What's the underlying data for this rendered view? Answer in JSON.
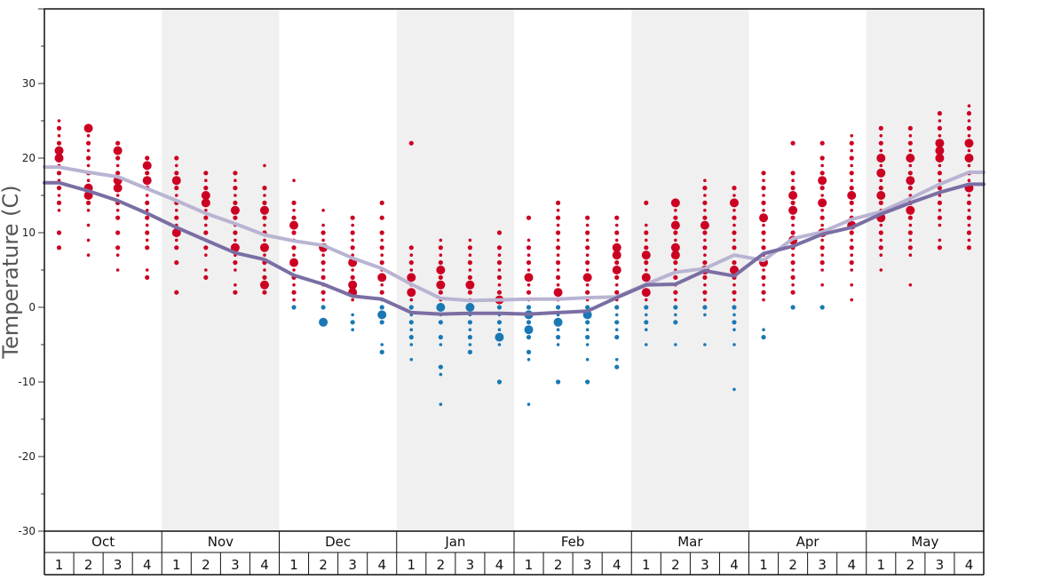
{
  "chart_data": {
    "type": "scatter",
    "ylabel": "Temperature (C)",
    "ylim": [
      -30,
      40
    ],
    "yticks": [
      30,
      20,
      10,
      0,
      -10,
      -20,
      -30
    ],
    "ytick_labels": [
      "30",
      "20",
      "10",
      "0",
      "-10",
      "-20",
      "-30"
    ],
    "months": [
      "Oct",
      "Nov",
      "Dec",
      "Jan",
      "Feb",
      "Mar",
      "Apr",
      "May"
    ],
    "weeks": [
      "1",
      "2",
      "3",
      "4"
    ],
    "shaded_months": [
      "Nov",
      "Jan",
      "Mar",
      "May"
    ],
    "colors": {
      "above_freezing": "#cc0022",
      "below_freezing": "#1a78b4",
      "avg_high_line": "#b9b4d2",
      "avg_low_line": "#7a6ea3",
      "shade": "#f0f0f0"
    },
    "series": [
      {
        "kind": "line",
        "values": [
          18.8,
          18.1,
          17.5,
          15.9,
          14.3,
          12.6,
          11.2,
          9.7,
          8.9,
          8.3,
          6.6,
          5.2,
          3.1,
          1.2,
          0.9,
          1.0,
          1.1,
          1.1,
          1.3,
          1.4,
          3.1,
          4.7,
          5.2,
          7.0,
          6.3,
          9.2,
          10.1,
          11.8,
          12.8,
          14.6,
          16.5,
          18.1
        ]
      },
      {
        "kind": "line",
        "values": [
          16.7,
          15.6,
          14.3,
          12.6,
          10.7,
          9.0,
          7.3,
          6.4,
          4.3,
          3.1,
          1.5,
          1.1,
          -0.7,
          -0.9,
          -0.8,
          -0.8,
          -0.9,
          -0.7,
          -0.5,
          1.3,
          3.0,
          3.1,
          4.9,
          4.2,
          7.2,
          8.2,
          9.8,
          10.7,
          12.5,
          14.0,
          15.4,
          16.5
        ]
      }
    ],
    "observations": [
      {
        "week": 1,
        "temps": [
          25,
          24,
          23,
          22,
          21,
          20,
          19,
          18,
          17,
          16,
          15,
          14,
          13,
          10,
          8
        ],
        "large": [
          21,
          20
        ]
      },
      {
        "week": 2,
        "temps": [
          24,
          23,
          22,
          21,
          20,
          19,
          18,
          17,
          16,
          15,
          14,
          13,
          11,
          9,
          7
        ],
        "large": [
          24,
          16,
          15
        ]
      },
      {
        "week": 3,
        "temps": [
          22,
          21,
          20,
          19,
          18,
          17,
          16,
          15,
          14,
          13,
          12,
          10,
          8,
          7,
          5
        ],
        "large": [
          21,
          17,
          16
        ]
      },
      {
        "week": 4,
        "temps": [
          20,
          19,
          18,
          17,
          16,
          15,
          14,
          13,
          12,
          11,
          10,
          9,
          8,
          5,
          4
        ],
        "large": [
          19,
          17
        ]
      },
      {
        "week": 5,
        "temps": [
          20,
          19,
          18,
          17,
          16,
          15,
          14,
          13,
          12,
          11,
          10,
          9,
          8,
          6,
          2
        ],
        "large": [
          17,
          10
        ]
      },
      {
        "week": 6,
        "temps": [
          18,
          17,
          16,
          15,
          14,
          13,
          12,
          11,
          10,
          9,
          8,
          7,
          5,
          4
        ],
        "large": [
          15,
          14
        ]
      },
      {
        "week": 7,
        "temps": [
          18,
          17,
          16,
          15,
          14,
          13,
          12,
          11,
          10,
          9,
          8,
          7,
          6,
          5,
          3,
          2
        ],
        "large": [
          13,
          8
        ]
      },
      {
        "week": 8,
        "temps": [
          19,
          16,
          15,
          14,
          13,
          12,
          11,
          10,
          9,
          8,
          7,
          6,
          5,
          4,
          3,
          2
        ],
        "large": [
          13,
          8,
          3
        ]
      },
      {
        "week": 9,
        "temps": [
          17,
          14,
          13,
          12,
          11,
          10,
          9,
          8,
          7,
          6,
          5,
          4,
          3,
          2,
          1,
          0
        ],
        "large": [
          11,
          6
        ]
      },
      {
        "week": 10,
        "temps": [
          13,
          11,
          10,
          9,
          8,
          7,
          6,
          5,
          4,
          3,
          2,
          1,
          0,
          -2
        ],
        "large": [
          8,
          -2
        ]
      },
      {
        "week": 11,
        "temps": [
          12,
          11,
          10,
          9,
          8,
          7,
          6,
          5,
          4,
          3,
          2,
          1,
          -1,
          -2,
          -3
        ],
        "large": [
          6,
          3,
          2
        ]
      },
      {
        "week": 12,
        "temps": [
          14,
          12,
          10,
          9,
          8,
          7,
          6,
          5,
          4,
          3,
          2,
          1,
          0,
          -1,
          -2,
          -5,
          -6
        ],
        "large": [
          4,
          -1
        ]
      },
      {
        "week": 13,
        "temps": [
          22,
          8,
          7,
          6,
          5,
          4,
          3,
          2,
          1,
          0,
          -1,
          -2,
          -3,
          -4,
          -5,
          -7
        ],
        "large": [
          4,
          2
        ]
      },
      {
        "week": 14,
        "temps": [
          9,
          8,
          7,
          6,
          5,
          4,
          3,
          2,
          1,
          0,
          -1,
          -2,
          -4,
          -5,
          -8,
          -9,
          -13
        ],
        "large": [
          5,
          3,
          0
        ]
      },
      {
        "week": 15,
        "temps": [
          9,
          8,
          7,
          6,
          5,
          4,
          3,
          2,
          1,
          0,
          -1,
          -2,
          -3,
          -4,
          -5,
          -6
        ],
        "large": [
          3,
          0
        ]
      },
      {
        "week": 16,
        "temps": [
          10,
          8,
          7,
          6,
          5,
          4,
          3,
          2,
          1,
          0,
          -1,
          -2,
          -3,
          -4,
          -5,
          -10
        ],
        "large": [
          1,
          -4
        ]
      },
      {
        "week": 17,
        "temps": [
          12,
          9,
          8,
          7,
          6,
          5,
          4,
          3,
          2,
          1,
          0,
          -1,
          -2,
          -3,
          -4,
          -6,
          -7,
          -13
        ],
        "large": [
          4,
          -1,
          -3
        ]
      },
      {
        "week": 18,
        "temps": [
          14,
          13,
          12,
          11,
          10,
          9,
          8,
          7,
          6,
          5,
          4,
          3,
          2,
          1,
          0,
          -1,
          -2,
          -3,
          -4,
          -5,
          -10
        ],
        "large": [
          2,
          -2
        ]
      },
      {
        "week": 19,
        "temps": [
          12,
          11,
          10,
          9,
          8,
          7,
          6,
          5,
          4,
          3,
          2,
          1,
          0,
          -1,
          -2,
          -3,
          -4,
          -5,
          -7,
          -10
        ],
        "large": [
          4,
          -1
        ]
      },
      {
        "week": 20,
        "temps": [
          12,
          11,
          10,
          9,
          8,
          7,
          6,
          5,
          4,
          3,
          2,
          1,
          0,
          -1,
          -2,
          -3,
          -4,
          -7,
          -8
        ],
        "large": [
          8,
          7,
          5
        ]
      },
      {
        "week": 21,
        "temps": [
          14,
          11,
          10,
          9,
          8,
          7,
          6,
          5,
          4,
          3,
          2,
          1,
          0,
          -1,
          -2,
          -3,
          -5
        ],
        "large": [
          7,
          4,
          2
        ]
      },
      {
        "week": 22,
        "temps": [
          14,
          13,
          12,
          11,
          10,
          9,
          8,
          7,
          6,
          5,
          4,
          3,
          2,
          1,
          0,
          -1,
          -2,
          -5
        ],
        "large": [
          14,
          11,
          8,
          7
        ]
      },
      {
        "week": 23,
        "temps": [
          17,
          16,
          15,
          14,
          13,
          12,
          11,
          10,
          9,
          8,
          7,
          6,
          5,
          4,
          3,
          2,
          1,
          0,
          -1,
          -5
        ],
        "large": [
          11,
          5
        ]
      },
      {
        "week": 24,
        "temps": [
          16,
          15,
          14,
          13,
          12,
          11,
          10,
          9,
          8,
          7,
          6,
          5,
          4,
          3,
          2,
          1,
          0,
          -1,
          -2,
          -3,
          -5,
          -11
        ],
        "large": [
          14,
          5
        ]
      },
      {
        "week": 25,
        "temps": [
          18,
          17,
          16,
          15,
          14,
          13,
          12,
          11,
          10,
          9,
          8,
          7,
          6,
          5,
          4,
          3,
          2,
          1,
          -3,
          -4
        ],
        "large": [
          12,
          6
        ]
      },
      {
        "week": 26,
        "temps": [
          22,
          18,
          17,
          16,
          15,
          14,
          13,
          12,
          11,
          10,
          9,
          8,
          7,
          6,
          5,
          4,
          3,
          2,
          0
        ],
        "large": [
          15,
          13,
          9
        ]
      },
      {
        "week": 27,
        "temps": [
          22,
          20,
          19,
          18,
          17,
          16,
          15,
          14,
          13,
          12,
          11,
          10,
          9,
          8,
          7,
          6,
          5,
          3,
          0
        ],
        "large": [
          17,
          14,
          10
        ]
      },
      {
        "week": 28,
        "temps": [
          23,
          22,
          21,
          20,
          19,
          18,
          17,
          16,
          15,
          14,
          13,
          12,
          11,
          10,
          9,
          8,
          7,
          6,
          5,
          3,
          1
        ],
        "large": [
          15,
          11
        ]
      },
      {
        "week": 29,
        "temps": [
          24,
          23,
          22,
          21,
          20,
          19,
          18,
          17,
          16,
          15,
          14,
          13,
          12,
          11,
          10,
          9,
          8,
          7,
          5
        ],
        "large": [
          20,
          18,
          15,
          12
        ]
      },
      {
        "week": 30,
        "temps": [
          24,
          23,
          22,
          21,
          20,
          19,
          18,
          17,
          16,
          15,
          14,
          13,
          12,
          11,
          10,
          9,
          8,
          7,
          3
        ],
        "large": [
          20,
          17,
          13
        ]
      },
      {
        "week": 31,
        "temps": [
          26,
          25,
          24,
          23,
          22,
          21,
          20,
          19,
          18,
          17,
          16,
          15,
          14,
          13,
          12,
          11,
          9,
          8
        ],
        "large": [
          22,
          21,
          20
        ]
      },
      {
        "week": 32,
        "temps": [
          27,
          26,
          25,
          24,
          23,
          22,
          21,
          20,
          19,
          18,
          17,
          16,
          15,
          14,
          13,
          12,
          11,
          10,
          9,
          8
        ],
        "large": [
          22,
          20,
          16
        ]
      }
    ]
  }
}
